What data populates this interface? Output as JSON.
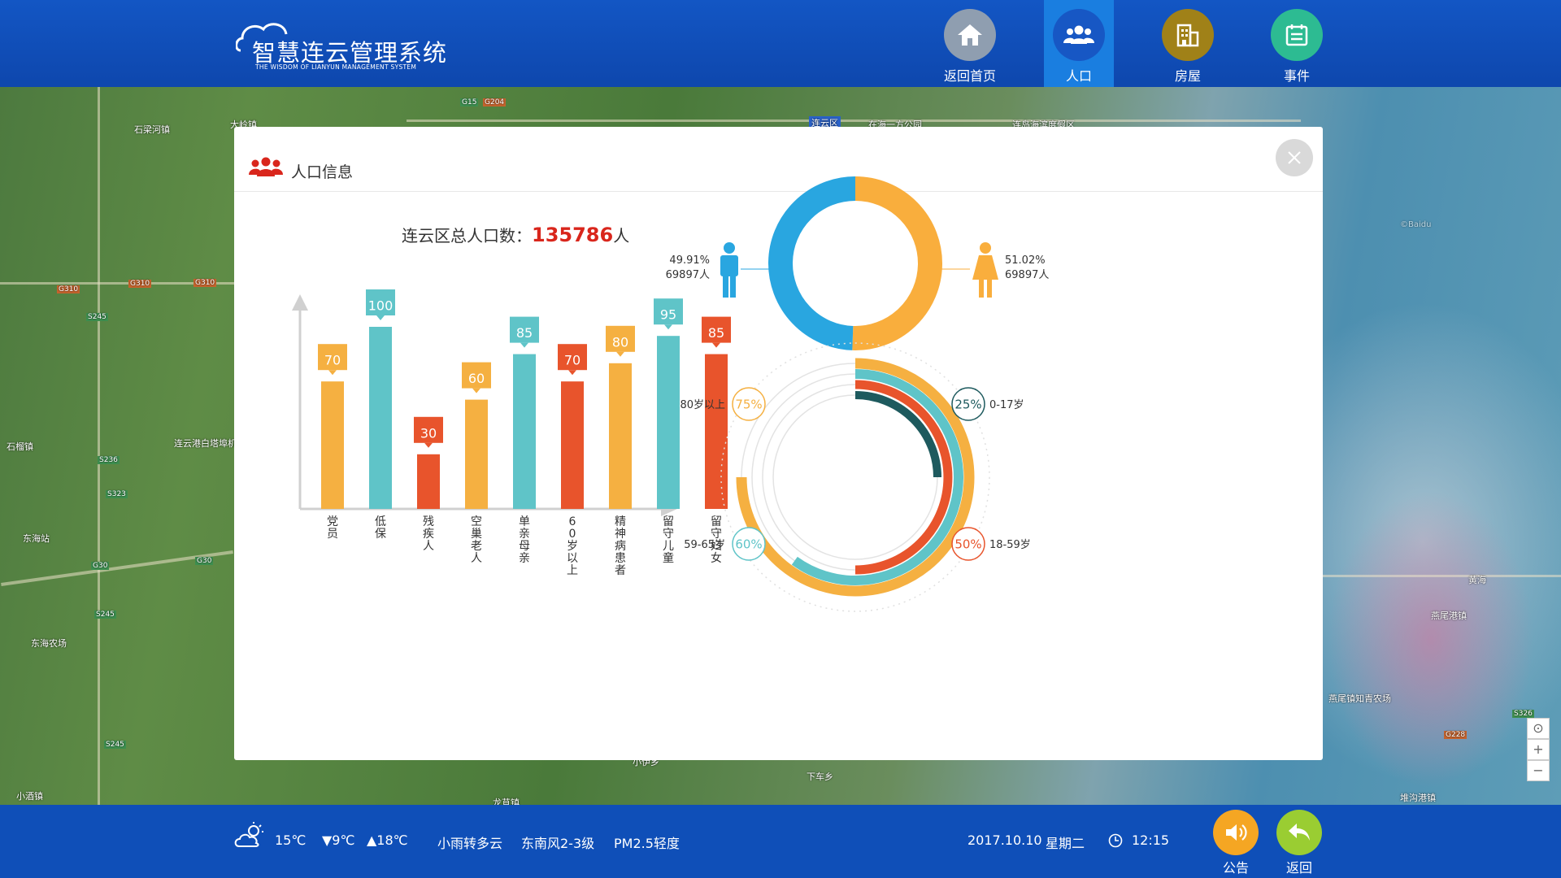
{
  "header": {
    "logo_title": "智慧连云管理系统",
    "logo_subtitle": "THE WISDOM OF LIANYUN MANAGEMENT SYSTEM",
    "nav": [
      {
        "label": "返回首页",
        "icon": "home-icon",
        "color": "#8f9eb0",
        "active": false
      },
      {
        "label": "人口",
        "icon": "people-icon",
        "color": "#1757c4",
        "active": true
      },
      {
        "label": "房屋",
        "icon": "building-icon",
        "color": "#a08118",
        "active": false
      },
      {
        "label": "事件",
        "icon": "calendar-icon",
        "color": "#2dbb92",
        "active": false
      }
    ]
  },
  "map": {
    "labels": [
      "石梁河镇",
      "大岭镇",
      "连云区",
      "在海一方公园",
      "连岛海滨度假区",
      "G15",
      "G204",
      "G310",
      "G310",
      "G310",
      "S245",
      "石榴镇",
      "连云港白塔埠机场",
      "S236",
      "S323",
      "东海站",
      "G30",
      "G30",
      "东海农场",
      "S245",
      "S245",
      "小酒镇",
      "龙苴镇",
      "小伊乡",
      "下车乡",
      "燕尾港镇",
      "燕尾镇知青农场",
      "堆沟港镇",
      "黄海",
      "S326",
      "G228",
      "©Baidu"
    ],
    "controls": [
      "⊙",
      "+",
      "−"
    ]
  },
  "panel": {
    "title": "人口信息",
    "close_icon": "close-icon",
    "total_label": "连云区总人口数：",
    "total_value": "135786",
    "total_unit": "人"
  },
  "chart_data": [
    {
      "type": "bar",
      "categories": [
        "党员",
        "低保",
        "残疾人",
        "空巢老人",
        "单亲母亲",
        "60岁以上",
        "精神病患者",
        "留守儿童",
        "留守妇女"
      ],
      "values": [
        70,
        100,
        30,
        60,
        85,
        70,
        80,
        95,
        85
      ],
      "colors": [
        "#f5b041",
        "#5fc4c8",
        "#e8542c",
        "#f5b041",
        "#5fc4c8",
        "#e8542c",
        "#f5b041",
        "#5fc4c8",
        "#e8542c"
      ],
      "ylim": [
        0,
        125
      ]
    },
    {
      "type": "pie",
      "donut": true,
      "series": [
        {
          "name": "男",
          "percent": "49.91%",
          "count": "69897人",
          "value": 49.91,
          "color": "#29a6e0"
        },
        {
          "name": "女",
          "percent": "51.02%",
          "count": "69897人",
          "value": 51.02,
          "color": "#f9ae3d"
        }
      ]
    },
    {
      "type": "radial-bar",
      "series": [
        {
          "name": "80岁以上",
          "label": "75%",
          "value": 75,
          "color": "#f5b041"
        },
        {
          "name": "59-65岁",
          "label": "60%",
          "value": 60,
          "color": "#5fc4c8"
        },
        {
          "name": "18-59岁",
          "label": "50%",
          "value": 50,
          "color": "#e8542c"
        },
        {
          "name": "0-17岁",
          "label": "25%",
          "value": 25,
          "color": "#1e5a5e"
        }
      ]
    }
  ],
  "footer": {
    "weather_icon": "cloud-sun-icon",
    "temperature": "15℃",
    "low": "▼9℃",
    "high": "▲18℃",
    "condition": "小雨转多云",
    "wind": "东南风2-3级",
    "pm": "PM2.5轻度",
    "date": "2017.10.10",
    "weekday": "星期二",
    "clock_icon": "clock-icon",
    "time": "12:15",
    "notice_label": "公告",
    "notice_color": "#f5a623",
    "back_label": "返回",
    "back_color": "#9acd32"
  }
}
